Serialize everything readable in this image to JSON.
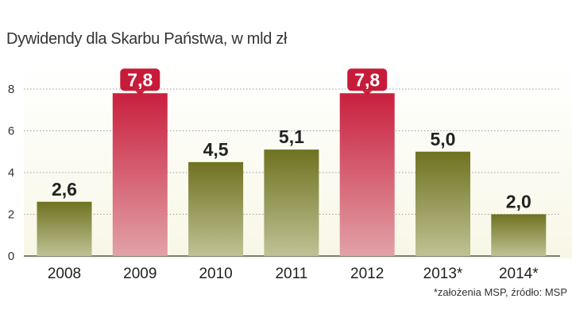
{
  "chart_data": {
    "type": "bar",
    "title": "Dywidendy dla Skarbu Państwa, w mld zł",
    "categories": [
      "2008",
      "2009",
      "2010",
      "2011",
      "2012",
      "2013*",
      "2014*"
    ],
    "values": [
      2.6,
      7.8,
      4.5,
      5.1,
      7.8,
      5.0,
      2.0
    ],
    "value_labels": [
      "2,6",
      "7,8",
      "4,5",
      "5,1",
      "7,8",
      "5,0",
      "2,0"
    ],
    "highlighted": [
      false,
      true,
      false,
      false,
      true,
      false,
      false
    ],
    "yticks": [
      0,
      2,
      4,
      6,
      8
    ],
    "ylim": [
      0,
      9.2
    ],
    "xlabel": "",
    "ylabel": "",
    "grid": true,
    "colors": {
      "normal_top": "#6f7220",
      "normal_bottom": "#c0c295",
      "highlight_top": "#c9203e",
      "highlight_bottom": "#e2a2a8",
      "highlight_label_bg": "#c71b3a",
      "plot_background": "#f8f7e6",
      "grid": "#9a9a9a"
    }
  },
  "footnote": "*założenia  MSP, źródło: MSP"
}
